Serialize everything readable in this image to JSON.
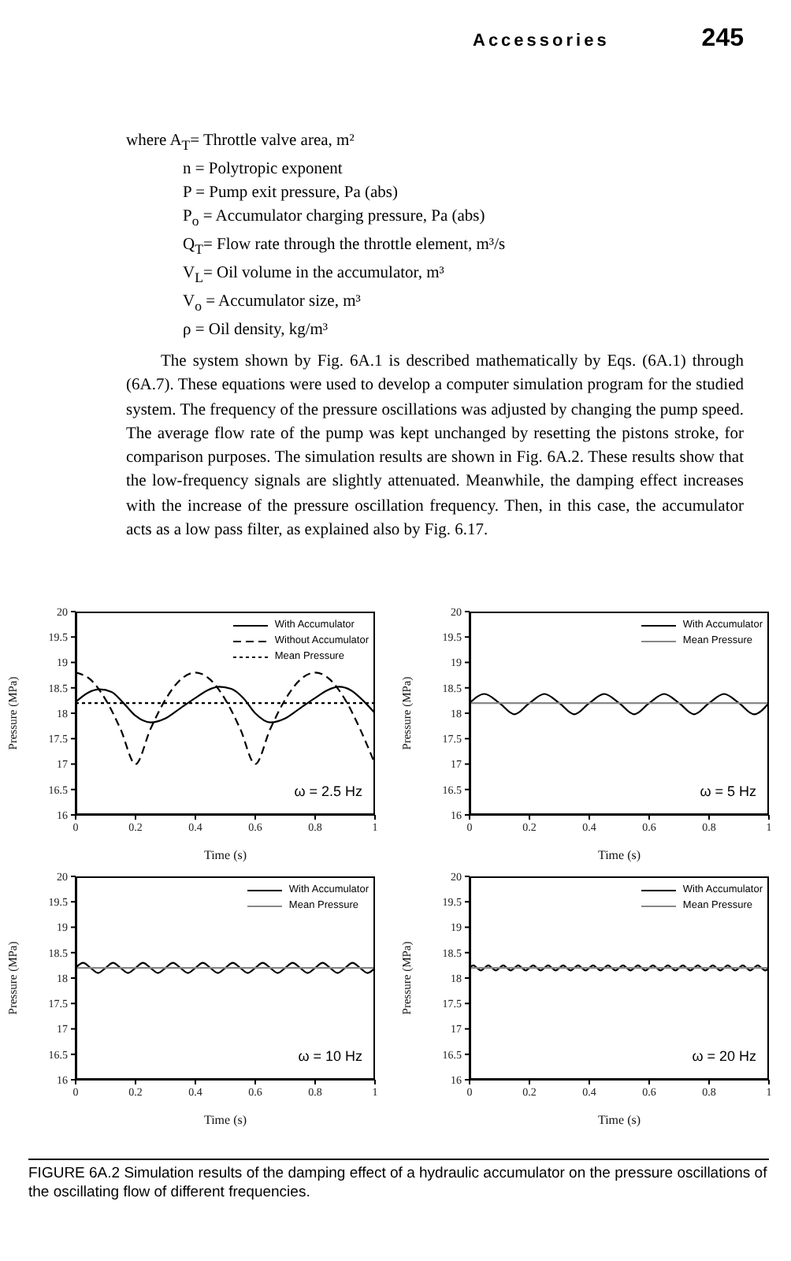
{
  "chart_data": [
    {
      "type": "line",
      "xlabel": "Time (s)",
      "ylabel": "Pressure (MPa)",
      "xlim": [
        0,
        1
      ],
      "ylim": [
        16,
        20
      ],
      "xticks": [
        0,
        0.2,
        0.4,
        0.6,
        0.8,
        1
      ],
      "yticks": [
        16,
        16.5,
        17,
        17.5,
        18,
        18.5,
        19,
        19.5,
        20
      ],
      "legend": "top right",
      "annotations": [
        "ω = 2.5 Hz",
        "Accessories",
        "245",
        "where A$_{T}$= Throttle valve area, m²",
        "n = Polytropic exponent",
        "P = Pump exit pressure, Pa (abs)",
        "P$_{o}$ = Accumulator charging pressure, Pa (abs)",
        "Q$_{T}$= Flow rate through the throttle element, m³/s",
        "V$_{L}$= Oil volume in the accumulator, m³",
        "V$_{o}$ = Accumulator size, m³",
        "ρ = Oil density, kg/m³",
        "The system shown by Fig. 6A.1 is described mathematically by Eqs. (6A.1) through (6A.7). These equations were used to develop a computer simulation program for the studied system. The frequency of the pressure oscillations was adjusted by changing the pump speed. The average flow rate of the pump was kept unchanged by resetting the pistons stroke, for comparison purposes. The simulation results are shown in Fig. 6A.2. These results show that the low-frequency signals are slightly attenuated. Meanwhile, the damping effect increases with the increase of the pressure oscillation frequency. Then, in this case, the accumulator acts as a low pass filter, as explained also by Fig. 6.17."
      ],
      "series": [
        {
          "name": "With Accumulator",
          "color": "#000000",
          "line_style": "solid",
          "x": [
            0,
            0.04,
            0.08,
            0.12,
            0.16,
            0.2,
            0.25,
            0.3,
            0.35,
            0.4,
            0.44,
            0.48,
            0.52,
            0.56,
            0.6,
            0.65,
            0.7,
            0.75,
            0.8,
            0.84,
            0.88,
            0.92,
            0.96,
            1
          ],
          "values": [
            18.22,
            18.4,
            18.47,
            18.42,
            18.2,
            17.95,
            17.82,
            17.9,
            18.1,
            18.3,
            18.45,
            18.52,
            18.48,
            18.3,
            18.0,
            17.82,
            17.9,
            18.1,
            18.3,
            18.45,
            18.52,
            18.45,
            18.25,
            18.0
          ]
        },
        {
          "name": "Without Accumulator",
          "color": "#000000",
          "line_style": "dashed",
          "x": [
            0,
            0.05,
            0.1,
            0.15,
            0.2,
            0.25,
            0.3,
            0.35,
            0.4,
            0.45,
            0.5,
            0.55,
            0.6,
            0.65,
            0.7,
            0.75,
            0.8,
            0.85,
            0.9,
            0.95,
            1
          ],
          "values": [
            18.8,
            18.66,
            18.27,
            17.69,
            17.0,
            17.69,
            18.27,
            18.66,
            18.8,
            18.66,
            18.27,
            17.69,
            17.0,
            17.69,
            18.27,
            18.66,
            18.8,
            18.66,
            18.27,
            17.69,
            17.0
          ]
        },
        {
          "name": "Mean Pressure",
          "color": "#000000",
          "line_style": "dotted",
          "x": [
            0,
            1
          ],
          "values": [
            18.2,
            18.2
          ]
        }
      ]
    },
    {
      "type": "line",
      "xlabel": "Time (s)",
      "ylabel": "Pressure (MPa)",
      "xlim": [
        0,
        1
      ],
      "ylim": [
        16,
        20
      ],
      "xticks": [
        0,
        0.2,
        0.4,
        0.6,
        0.8,
        1
      ],
      "yticks": [
        16,
        16.5,
        17,
        17.5,
        18,
        18.5,
        19,
        19.5,
        20
      ],
      "legend": "top right",
      "annotations": [
        "ω = 5 Hz"
      ],
      "series": [
        {
          "name": "With Accumulator",
          "color": "#000000",
          "line_style": "solid",
          "x": [
            0,
            0.05,
            0.1,
            0.15,
            0.2,
            0.25,
            0.3,
            0.35,
            0.4,
            0.45,
            0.5,
            0.55,
            0.6,
            0.65,
            0.7,
            0.75,
            0.8,
            0.85,
            0.9,
            0.95,
            1
          ],
          "values": [
            18.2,
            18.38,
            18.2,
            17.98,
            18.2,
            18.38,
            18.2,
            17.98,
            18.2,
            18.38,
            18.2,
            17.98,
            18.2,
            18.38,
            18.2,
            17.98,
            18.2,
            18.38,
            18.2,
            17.98,
            18.2
          ]
        },
        {
          "name": "Mean Pressure",
          "color": "#888888",
          "line_style": "solid",
          "x": [
            0,
            1
          ],
          "values": [
            18.2,
            18.2
          ]
        }
      ]
    },
    {
      "type": "line",
      "xlabel": "Time (s)",
      "ylabel": "Pressure (MPa)",
      "xlim": [
        0,
        1
      ],
      "ylim": [
        16,
        20
      ],
      "xticks": [
        0,
        0.2,
        0.4,
        0.6,
        0.8,
        1
      ],
      "yticks": [
        16,
        16.5,
        17,
        17.5,
        18,
        18.5,
        19,
        19.5,
        20
      ],
      "legend": "top right",
      "annotations": [
        "ω = 10 Hz"
      ],
      "series": [
        {
          "name": "With Accumulator",
          "color": "#000000",
          "line_style": "solid",
          "x": [
            0,
            0.025,
            0.05,
            0.075,
            0.1,
            0.125,
            0.15,
            0.175,
            0.2,
            0.225,
            0.25,
            0.275,
            0.3,
            0.325,
            0.35,
            0.375,
            0.4,
            0.425,
            0.45,
            0.475,
            0.5,
            0.525,
            0.55,
            0.575,
            0.6,
            0.625,
            0.65,
            0.675,
            0.7,
            0.725,
            0.75,
            0.775,
            0.8,
            0.825,
            0.85,
            0.875,
            0.9,
            0.925,
            0.95,
            0.975,
            1
          ],
          "values": [
            18.2,
            18.3,
            18.2,
            18.1,
            18.2,
            18.3,
            18.2,
            18.1,
            18.2,
            18.3,
            18.2,
            18.1,
            18.2,
            18.3,
            18.2,
            18.1,
            18.2,
            18.3,
            18.2,
            18.1,
            18.2,
            18.3,
            18.2,
            18.1,
            18.2,
            18.3,
            18.2,
            18.1,
            18.2,
            18.3,
            18.2,
            18.1,
            18.2,
            18.3,
            18.2,
            18.1,
            18.2,
            18.3,
            18.2,
            18.1,
            18.2
          ]
        },
        {
          "name": "Mean Pressure",
          "color": "#888888",
          "line_style": "solid",
          "x": [
            0,
            1
          ],
          "values": [
            18.2,
            18.2
          ]
        }
      ]
    },
    {
      "type": "line",
      "xlabel": "Time (s)",
      "ylabel": "Pressure (MPa)",
      "xlim": [
        0,
        1
      ],
      "ylim": [
        16,
        20
      ],
      "xticks": [
        0,
        0.2,
        0.4,
        0.6,
        0.8,
        1
      ],
      "yticks": [
        16,
        16.5,
        17,
        17.5,
        18,
        18.5,
        19,
        19.5,
        20
      ],
      "legend": "top right",
      "annotations": [
        "ω = 20 Hz",
        "FIGURE 6A.2 Simulation results of the damping effect of a hydraulic accumulator on the pressure oscillations of the oscillating flow of different frequencies."
      ],
      "series": [
        {
          "name": "With Accumulator",
          "color": "#000000",
          "line_style": "solid",
          "x": [
            0,
            0.0125,
            0.025,
            0.0375,
            0.05,
            0.0625,
            0.075,
            0.0875,
            0.1,
            0.1125,
            0.125,
            0.1375,
            0.15,
            0.1625,
            0.175,
            0.1875,
            0.2,
            0.2125,
            0.225,
            0.2375,
            0.25,
            0.2625,
            0.275,
            0.2875,
            0.3,
            0.3125,
            0.325,
            0.3375,
            0.35,
            0.3625,
            0.375,
            0.3875,
            0.4,
            0.4125,
            0.425,
            0.4375,
            0.45,
            0.4625,
            0.475,
            0.4875,
            0.5,
            0.5125,
            0.525,
            0.5375,
            0.55,
            0.5625,
            0.575,
            0.5875,
            0.6,
            0.6125,
            0.625,
            0.6375,
            0.65,
            0.6625,
            0.675,
            0.6875,
            0.7,
            0.7125,
            0.725,
            0.7375,
            0.75,
            0.7625,
            0.775,
            0.7875,
            0.8,
            0.8125,
            0.825,
            0.8375,
            0.85,
            0.8625,
            0.875,
            0.8875,
            0.9,
            0.9125,
            0.925,
            0.9375,
            0.95,
            0.9625,
            0.975,
            0.9875,
            1
          ],
          "values": [
            18.2,
            18.25,
            18.2,
            18.15,
            18.2,
            18.25,
            18.2,
            18.15,
            18.2,
            18.25,
            18.2,
            18.15,
            18.2,
            18.25,
            18.2,
            18.15,
            18.2,
            18.25,
            18.2,
            18.15,
            18.2,
            18.25,
            18.2,
            18.15,
            18.2,
            18.25,
            18.2,
            18.15,
            18.2,
            18.25,
            18.2,
            18.15,
            18.2,
            18.25,
            18.2,
            18.15,
            18.2,
            18.25,
            18.2,
            18.15,
            18.2,
            18.25,
            18.2,
            18.15,
            18.2,
            18.25,
            18.2,
            18.15,
            18.2,
            18.25,
            18.2,
            18.15,
            18.2,
            18.25,
            18.2,
            18.15,
            18.2,
            18.25,
            18.2,
            18.15,
            18.2,
            18.25,
            18.2,
            18.15,
            18.2,
            18.25,
            18.2,
            18.15,
            18.2,
            18.25,
            18.2,
            18.15,
            18.2,
            18.25,
            18.2,
            18.15,
            18.2,
            18.25,
            18.2,
            18.15,
            18.2
          ]
        },
        {
          "name": "Mean Pressure",
          "color": "#888888",
          "line_style": "solid",
          "x": [
            0,
            1
          ],
          "values": [
            18.2,
            18.2
          ]
        }
      ]
    }
  ]
}
